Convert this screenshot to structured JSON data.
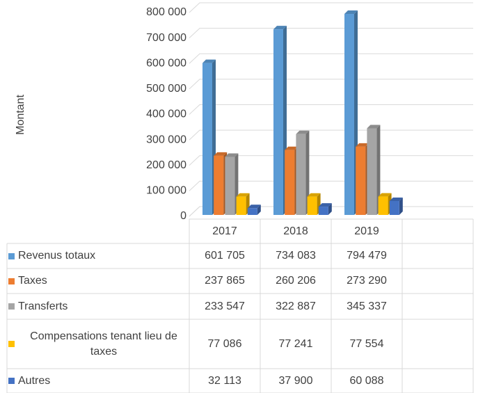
{
  "chart_data": {
    "type": "bar3d",
    "y_label": "Montant",
    "categories": [
      "2017",
      "2018",
      "2019",
      null
    ],
    "series": [
      {
        "name": "Revenus totaux",
        "color": "#5b9bd5",
        "values": [
          601705,
          734083,
          794479,
          null
        ],
        "value_labels": [
          "601 705",
          "734 083",
          "794 479",
          null
        ]
      },
      {
        "name": "Taxes",
        "color": "#ed7d31",
        "values": [
          237865,
          260206,
          273290,
          null
        ],
        "value_labels": [
          "237 865",
          "260 206",
          "273 290",
          null
        ]
      },
      {
        "name": "Transferts",
        "color": "#a5a5a5",
        "values": [
          233547,
          322887,
          345337,
          null
        ],
        "value_labels": [
          "233 547",
          "322 887",
          "345 337",
          null
        ]
      },
      {
        "name": "Compensations tenant lieu de taxes",
        "color": "#ffc000",
        "values": [
          77086,
          77241,
          77554,
          null
        ],
        "value_labels": [
          "77 086",
          "77 241",
          "77 554",
          null
        ]
      },
      {
        "name": "Autres",
        "color": "#4472c4",
        "values": [
          32113,
          37900,
          60088,
          null
        ],
        "value_labels": [
          "32 113",
          "37 900",
          "60 088",
          null
        ]
      }
    ],
    "ylim": [
      0,
      800000
    ],
    "yticks": [
      0,
      {
        "value": 100000,
        "label": "100 000"
      },
      {
        "value": 200000,
        "label": "200 000"
      },
      {
        "value": 300000,
        "label": "300 000"
      },
      {
        "value": 400000,
        "label": "400 000"
      },
      {
        "value": 500000,
        "label": "500 000"
      },
      {
        "value": 600000,
        "label": "600 000"
      },
      {
        "value": 700000,
        "label": "700 000"
      },
      {
        "value": 800000,
        "label": "800 000"
      }
    ],
    "grid": true,
    "data_table": true
  }
}
